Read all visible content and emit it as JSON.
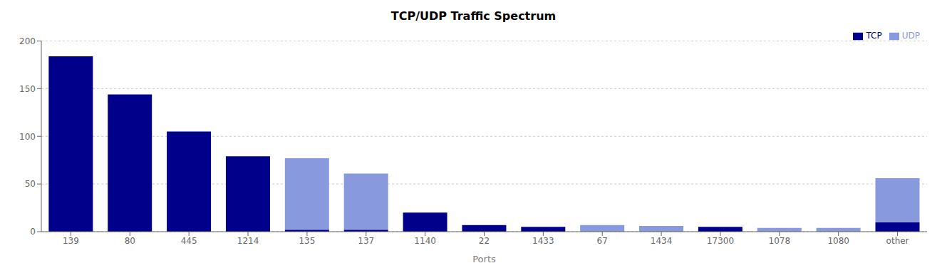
{
  "chart_data": {
    "type": "bar",
    "title": "TCP/UDP Traffic Spectrum",
    "xlabel": "Ports",
    "categories": [
      "139",
      "80",
      "445",
      "1214",
      "135",
      "137",
      "1140",
      "22",
      "1433",
      "67",
      "1434",
      "17300",
      "1078",
      "1080",
      "other"
    ],
    "series": [
      {
        "name": "TCP",
        "color": "#00008B",
        "values": [
          184,
          144,
          105,
          79,
          2,
          2,
          20,
          7,
          5,
          0,
          0,
          5,
          0,
          0,
          10
        ]
      },
      {
        "name": "UDP",
        "color": "#8899DD",
        "values": [
          0,
          0,
          0,
          0,
          75,
          59,
          0,
          0,
          0,
          7,
          6,
          0,
          4,
          4,
          46
        ]
      }
    ],
    "stacked": true,
    "ylim": [
      0,
      200
    ],
    "yticks": [
      0,
      50,
      100,
      150,
      200
    ],
    "grid": true,
    "legend": "upper right"
  }
}
